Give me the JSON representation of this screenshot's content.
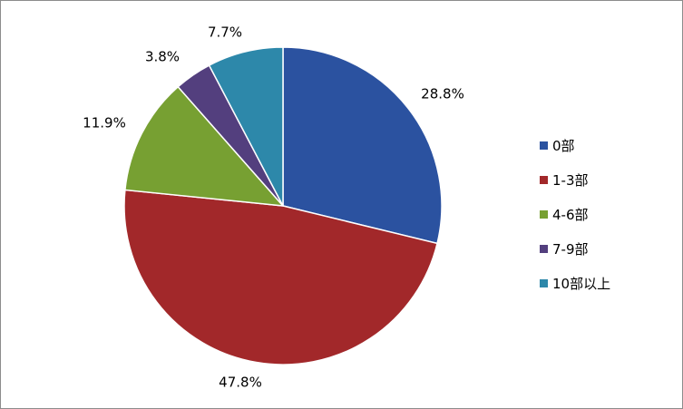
{
  "chart_data": {
    "type": "pie",
    "title": "",
    "legend_position": "right",
    "categories": [
      "0部",
      "1-3部",
      "4-6部",
      "7-9部",
      "10部以上"
    ],
    "values": [
      28.8,
      47.8,
      11.9,
      3.8,
      7.7
    ],
    "labels": [
      "28.8%",
      "47.8%",
      "11.9%",
      "3.8%",
      "7.7%"
    ],
    "colors": [
      "#2b52a0",
      "#a2282a",
      "#77a032",
      "#533f7e",
      "#2d88aa"
    ]
  }
}
